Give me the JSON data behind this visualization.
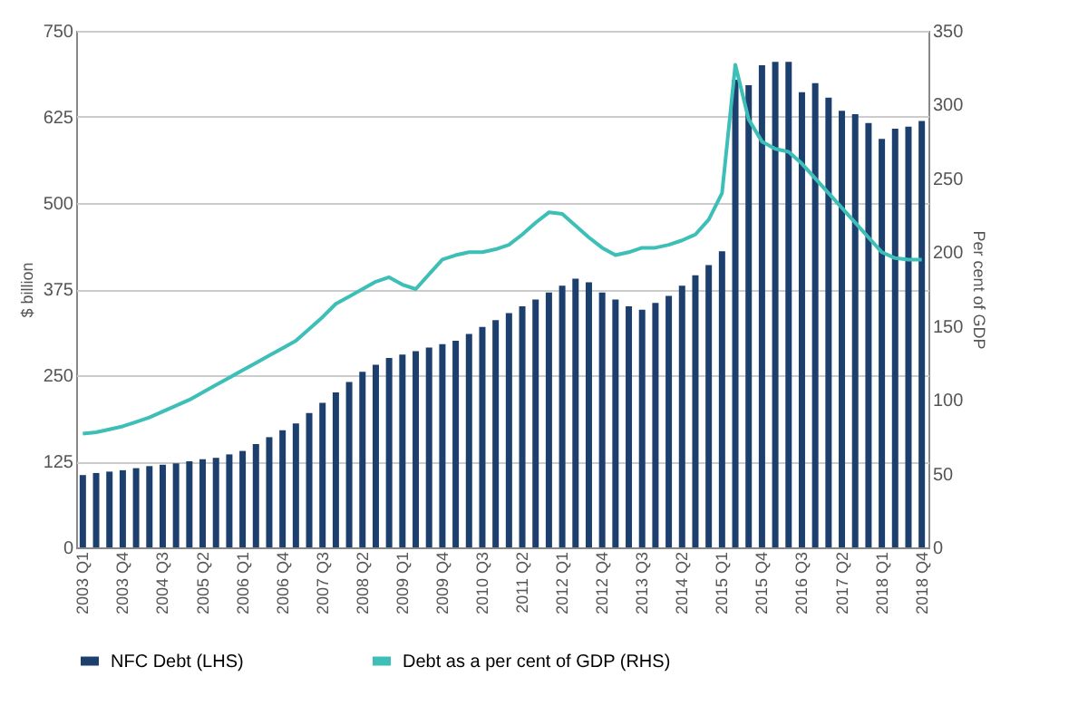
{
  "chart_data": {
    "type": "bar",
    "ylabel": "$ billion",
    "y2label": "Per cent of GDP",
    "categories": [
      "2003 Q1",
      null,
      null,
      "2003 Q4",
      null,
      null,
      "2004 Q3",
      null,
      null,
      "2005 Q2",
      null,
      null,
      "2006 Q1",
      null,
      null,
      "2006 Q4",
      null,
      null,
      "2007 Q3",
      null,
      null,
      "2008 Q2",
      null,
      null,
      "2009 Q1",
      null,
      null,
      "2009 Q4",
      null,
      null,
      "2010 Q3",
      null,
      null,
      "2011 Q2",
      null,
      null,
      "2012 Q1",
      null,
      null,
      "2012 Q4",
      null,
      null,
      "2013 Q3",
      null,
      null,
      "2014 Q2",
      null,
      null,
      "2015 Q1",
      null,
      null,
      "2015 Q4",
      null,
      null,
      "2016 Q3",
      null,
      null,
      "2017 Q2",
      null,
      null,
      "2018 Q1",
      null,
      null,
      "2018 Q4"
    ],
    "series": [
      {
        "name": "NFC Debt (LHS)",
        "color": "#1c3f6e",
        "values": [
          105,
          108,
          110,
          112,
          115,
          118,
          120,
          122,
          125,
          128,
          130,
          135,
          140,
          150,
          160,
          170,
          180,
          195,
          210,
          225,
          240,
          255,
          265,
          275,
          280,
          285,
          290,
          295,
          300,
          310,
          320,
          330,
          340,
          350,
          360,
          370,
          380,
          390,
          385,
          370,
          360,
          350,
          345,
          355,
          365,
          380,
          395,
          410,
          430,
          679,
          671,
          700,
          705,
          705,
          661,
          674,
          653,
          634,
          629,
          616,
          593,
          608,
          611,
          619
        ]
      },
      {
        "name": "Debt as a per cent of GDP (RHS)",
        "color": "#3dbfb8",
        "type": "line",
        "axis": "y2",
        "values": [
          77,
          78,
          80,
          82,
          85,
          88,
          92,
          96,
          100,
          105,
          110,
          115,
          120,
          125,
          130,
          135,
          140,
          148,
          156,
          165,
          170,
          175,
          180,
          183,
          178,
          175,
          185,
          195,
          198,
          200,
          200,
          202,
          205,
          212,
          220,
          227,
          226,
          218,
          210,
          203,
          198,
          200,
          203,
          203,
          205,
          208,
          212,
          222,
          240,
          327,
          290,
          275,
          270,
          268,
          260,
          250,
          240,
          230,
          220,
          210,
          200,
          196,
          195,
          195
        ]
      }
    ],
    "ylim": [
      0,
      750
    ],
    "yticks": [
      0,
      125,
      250,
      375,
      500,
      625,
      750
    ],
    "y2lim": [
      0,
      350
    ],
    "y2ticks": [
      0,
      50,
      100,
      150,
      200,
      250,
      300,
      350
    ],
    "grid": "y",
    "legend": "bottom"
  }
}
